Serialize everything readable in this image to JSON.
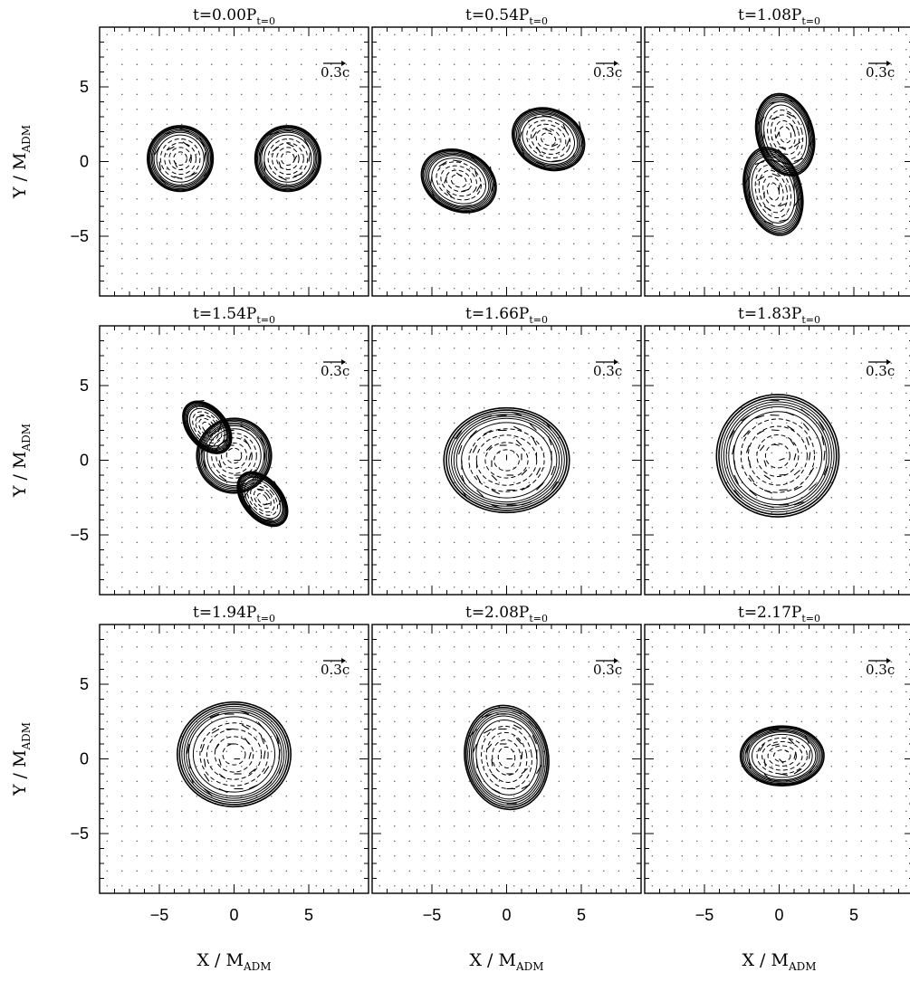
{
  "figure": {
    "xlabel": "X / M",
    "xlabel_sub": "ADM",
    "ylabel": "Y / M",
    "ylabel_sub": "ADM",
    "reference_arrow_label": "0.3c",
    "title_prefix": "t=",
    "title_unit": "P",
    "title_sub": "t=0"
  },
  "chart_data": {
    "type": "contour",
    "xlim": [
      -9,
      9
    ],
    "ylim": [
      -9,
      9
    ],
    "xticks": [
      -5,
      0,
      5
    ],
    "yticks": [
      -5,
      0,
      5
    ],
    "grid": "dotted velocity-field points",
    "panels": [
      {
        "time": "1.08",
        "blobs": [
          {
            "cx": 0.4,
            "cy": 1.8,
            "rx": 1.9,
            "ry": 2.8,
            "rot": 15,
            "sep": 0.0
          },
          {
            "cx": -0.4,
            "cy": -2.0,
            "rx": 1.9,
            "ry": 3.0,
            "rot": 15,
            "sep": 0.0
          }
        ]
      },
      {
        "time": "0.00",
        "blobs": [
          {
            "cx": -3.6,
            "cy": 0.2,
            "rx": 2.2,
            "ry": 2.2,
            "rot": 0
          },
          {
            "cx": 3.6,
            "cy": 0.2,
            "rx": 2.2,
            "ry": 2.2,
            "rot": 0
          }
        ]
      },
      {
        "time": "0.54",
        "blobs": [
          {
            "cx": -3.2,
            "cy": -1.3,
            "rx": 2.6,
            "ry": 2.0,
            "rot": -25
          },
          {
            "cx": 2.8,
            "cy": 1.5,
            "rx": 2.5,
            "ry": 2.0,
            "rot": -25
          }
        ]
      },
      {
        "time": "1.54",
        "blobs": [
          {
            "cx": 0.0,
            "cy": 0.3,
            "rx": 2.5,
            "ry": 2.5,
            "rot": 0
          },
          {
            "cx": -1.8,
            "cy": 2.2,
            "rx": 1.3,
            "ry": 2.0,
            "rot": 40
          },
          {
            "cx": 1.9,
            "cy": -2.6,
            "rx": 1.3,
            "ry": 2.1,
            "rot": 40
          }
        ]
      },
      {
        "time": "1.66",
        "blobs": [
          {
            "cx": 0.0,
            "cy": 0.0,
            "rx": 4.2,
            "ry": 3.5,
            "rot": 0
          }
        ]
      },
      {
        "time": "1.83",
        "blobs": [
          {
            "cx": -0.1,
            "cy": 0.3,
            "rx": 4.1,
            "ry": 4.1,
            "rot": 0
          }
        ]
      },
      {
        "time": "1.94",
        "blobs": [
          {
            "cx": 0.0,
            "cy": 0.3,
            "rx": 3.8,
            "ry": 3.5,
            "rot": 0
          }
        ]
      },
      {
        "time": "2.08",
        "blobs": [
          {
            "cx": 0.0,
            "cy": 0.1,
            "rx": 2.8,
            "ry": 3.5,
            "rot": 10
          }
        ]
      },
      {
        "time": "2.17",
        "blobs": [
          {
            "cx": 0.2,
            "cy": 0.2,
            "rx": 2.8,
            "ry": 2.0,
            "rot": 0
          }
        ]
      }
    ]
  }
}
